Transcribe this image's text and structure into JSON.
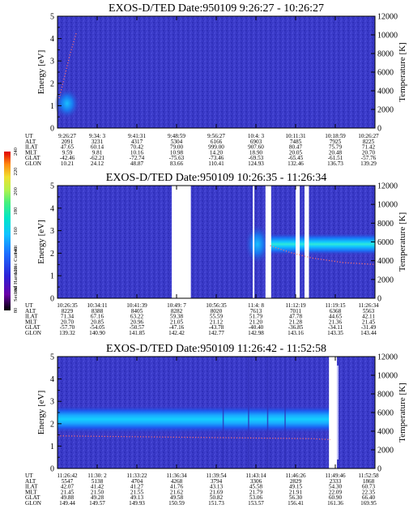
{
  "colorbar": {
    "label": "Second Harmonic Current",
    "ticks": [
      "80",
      "100",
      "120",
      "140",
      "160",
      "180",
      "200",
      "220",
      "240"
    ]
  },
  "panels": [
    {
      "title": "EXOS-D/TED   Date:950109  9:26:27 - 10:26:27",
      "ylabel": "Energy [eV]",
      "y2label": "Temperature [K]",
      "yticks": [
        "0",
        "1",
        "2",
        "3",
        "4",
        "5"
      ],
      "y2ticks": [
        "0",
        "2000",
        "4000",
        "6000",
        "8000",
        "10000",
        "12000"
      ],
      "orbit_labels": [
        "UT",
        "ALT",
        "ILAT",
        "MLT",
        "GLAT",
        "GLON"
      ],
      "orbit_columns": [
        [
          "9:26:27",
          "2091",
          "47.65",
          "9.59",
          "-42.46",
          "10.21"
        ],
        [
          "9:34: 3",
          "3231",
          "60.14",
          "9.81",
          "-62.21",
          "24.12"
        ],
        [
          "9:41:31",
          "4317",
          "70.42",
          "10.16",
          "-72.74",
          "48.87"
        ],
        [
          "9:48:59",
          "5304",
          "79.00",
          "10.98",
          "-75.63",
          "83.66"
        ],
        [
          "9:56:27",
          "6166",
          "999.00",
          "14.20",
          "-73.46",
          "110.41"
        ],
        [
          "10:4: 3",
          "6903",
          "907.60",
          "18.90",
          "-69.53",
          "124.93"
        ],
        [
          "10:11:31",
          "7485",
          "80.47",
          "20.05",
          "-65.45",
          "132.46"
        ],
        [
          "10:18:59",
          "7925",
          "75.79",
          "20.48",
          "-61.51",
          "136.73"
        ],
        [
          "10:26:27",
          "8225",
          "71.42",
          "20.70",
          "-57.76",
          "139.29"
        ]
      ]
    },
    {
      "title": "EXOS-D/TED   Date:950109  10:26:35 - 11:26:34",
      "ylabel": "Energy [eV]",
      "y2label": "Temperature [K]",
      "yticks": [
        "0",
        "1",
        "2",
        "3",
        "4",
        "5"
      ],
      "y2ticks": [
        "0",
        "2000",
        "4000",
        "6000",
        "8000",
        "10000",
        "12000"
      ],
      "orbit_labels": [
        "UT",
        "ALT",
        "ILAT",
        "MLT",
        "GLAT",
        "GLON"
      ],
      "orbit_columns": [
        [
          "10:26:35",
          "8229",
          "71.34",
          "20.70",
          "-57.70",
          "139.32"
        ],
        [
          "10:34:11",
          "8388",
          "67.16",
          "20.85",
          "-54.05",
          "140.90"
        ],
        [
          "10:41:39",
          "8405",
          "63.22",
          "20.96",
          "-50.57",
          "141.85"
        ],
        [
          "10:49: 7",
          "8282",
          "59.38",
          "21.05",
          "-47.16",
          "142.42"
        ],
        [
          "10:56:35",
          "8020",
          "55.59",
          "21.12",
          "-43.78",
          "142.77"
        ],
        [
          "11:4: 8",
          "7613",
          "51.79",
          "21.20",
          "-40.40",
          "142.98"
        ],
        [
          "11:12:19",
          "7011",
          "47.78",
          "21.28",
          "-36.85",
          "143.16"
        ],
        [
          "11:19:15",
          "6368",
          "44.65",
          "21.36",
          "-34.11",
          "143.35"
        ],
        [
          "11:26:34",
          "5563",
          "42.11",
          "21.45",
          "-31.49",
          "143.44"
        ]
      ]
    },
    {
      "title": "EXOS-D/TED   Date:950109  11:26:42 - 11:52:58",
      "ylabel": "Energy [eV]",
      "y2label": "Temperature [K]",
      "yticks": [
        "0",
        "1",
        "2",
        "3",
        "4",
        "5"
      ],
      "y2ticks": [
        "0",
        "2000",
        "4000",
        "6000",
        "8000",
        "10000",
        "12000"
      ],
      "orbit_labels": [
        "UT",
        "ALT",
        "ILAT",
        "MLT",
        "GLAT",
        "GLON"
      ],
      "orbit_columns": [
        [
          "11:26:42",
          "5547",
          "42.07",
          "21.45",
          "49.88",
          "149.44"
        ],
        [
          "11:30: 2",
          "5138",
          "41.42",
          "21.50",
          "49.28",
          "149.57"
        ],
        [
          "11:33:22",
          "4704",
          "41.27",
          "21.55",
          "49.13",
          "149.93"
        ],
        [
          "11:36:34",
          "4268",
          "41.76",
          "21.62",
          "49.58",
          "150.59"
        ],
        [
          "11:39:54",
          "3794",
          "43.13",
          "21.69",
          "50.82",
          "151.73"
        ],
        [
          "11:43:14",
          "3306",
          "45.58",
          "21.79",
          "53.06",
          "153.57"
        ],
        [
          "11:46:26",
          "2829",
          "49.15",
          "21.91",
          "56.30",
          "156.41"
        ],
        [
          "11:49:46",
          "2333",
          "54.30",
          "22.09",
          "60.90",
          "161.36"
        ],
        [
          "11:52:58",
          "1868",
          "60.73",
          "22.35",
          "66.40",
          "169.95"
        ]
      ]
    }
  ],
  "chart_data": [
    {
      "type": "heatmap",
      "title": "EXOS-D/TED   Date:950109  9:26:27 - 10:26:27",
      "xlabel": "UT",
      "ylabel": "Energy [eV]",
      "y2label": "Temperature [K]",
      "ylim": [
        0,
        5
      ],
      "y2lim": [
        0,
        12000
      ],
      "features": [
        {
          "kind": "enhancement",
          "x_frac": [
            0.0,
            0.06
          ],
          "energy_ev": [
            0.4,
            1.8
          ],
          "level": "120-150"
        }
      ],
      "temperature_trace_k": [
        {
          "x_frac": 0.005,
          "k": 3200
        },
        {
          "x_frac": 0.02,
          "k": 5200
        },
        {
          "x_frac": 0.04,
          "k": 8000
        },
        {
          "x_frac": 0.06,
          "k": 10300
        }
      ],
      "gaps": []
    },
    {
      "type": "heatmap",
      "title": "EXOS-D/TED   Date:950109  10:26:35 - 11:26:34",
      "xlabel": "UT",
      "ylabel": "Energy [eV]",
      "y2label": "Temperature [K]",
      "ylim": [
        0,
        5
      ],
      "y2lim": [
        0,
        12000
      ],
      "features": [
        {
          "kind": "blob",
          "x_frac": [
            0.6,
            0.66
          ],
          "energy_ev": [
            1.5,
            3.3
          ],
          "level": "110-140"
        },
        {
          "kind": "band",
          "x_frac": [
            0.67,
            1.0
          ],
          "energy_ev": [
            1.9,
            2.9
          ],
          "level": "130-190"
        }
      ],
      "temperature_trace_k": [
        {
          "x_frac": 0.67,
          "k": 5600
        },
        {
          "x_frac": 0.73,
          "k": 4900
        },
        {
          "x_frac": 0.8,
          "k": 4300
        },
        {
          "x_frac": 0.9,
          "k": 3800
        },
        {
          "x_frac": 1.0,
          "k": 3600
        }
      ],
      "gaps": [
        [
          0.36,
          0.42
        ],
        [
          0.615,
          0.62
        ],
        [
          0.655,
          0.673
        ],
        [
          0.75,
          0.763
        ],
        [
          0.778,
          0.792
        ]
      ]
    },
    {
      "type": "heatmap",
      "title": "EXOS-D/TED   Date:950109  11:26:42 - 11:52:58",
      "xlabel": "UT",
      "ylabel": "Energy [eV]",
      "y2label": "Temperature [K]",
      "ylim": [
        0,
        5
      ],
      "y2lim": [
        0,
        12000
      ],
      "features": [
        {
          "kind": "band",
          "x_frac": [
            0.0,
            0.86
          ],
          "energy_ev": [
            1.6,
            2.8
          ],
          "level": "130-175"
        }
      ],
      "temperature_trace_k": [
        {
          "x_frac": 0.0,
          "k": 3500
        },
        {
          "x_frac": 0.4,
          "k": 3350
        },
        {
          "x_frac": 0.8,
          "k": 3200
        },
        {
          "x_frac": 0.86,
          "k": 3100
        }
      ],
      "gaps": [
        [
          0.855,
          0.88
        ]
      ]
    }
  ],
  "colors": {
    "background": "#3838c8",
    "palette": [
      "#000000",
      "#6a00a8",
      "#2c24d8",
      "#1c70ff",
      "#10c4ff",
      "#00e6c8",
      "#48f07c",
      "#b4f24c",
      "#f0e030",
      "#ff8a10",
      "#ff2020",
      "#e00000"
    ]
  }
}
